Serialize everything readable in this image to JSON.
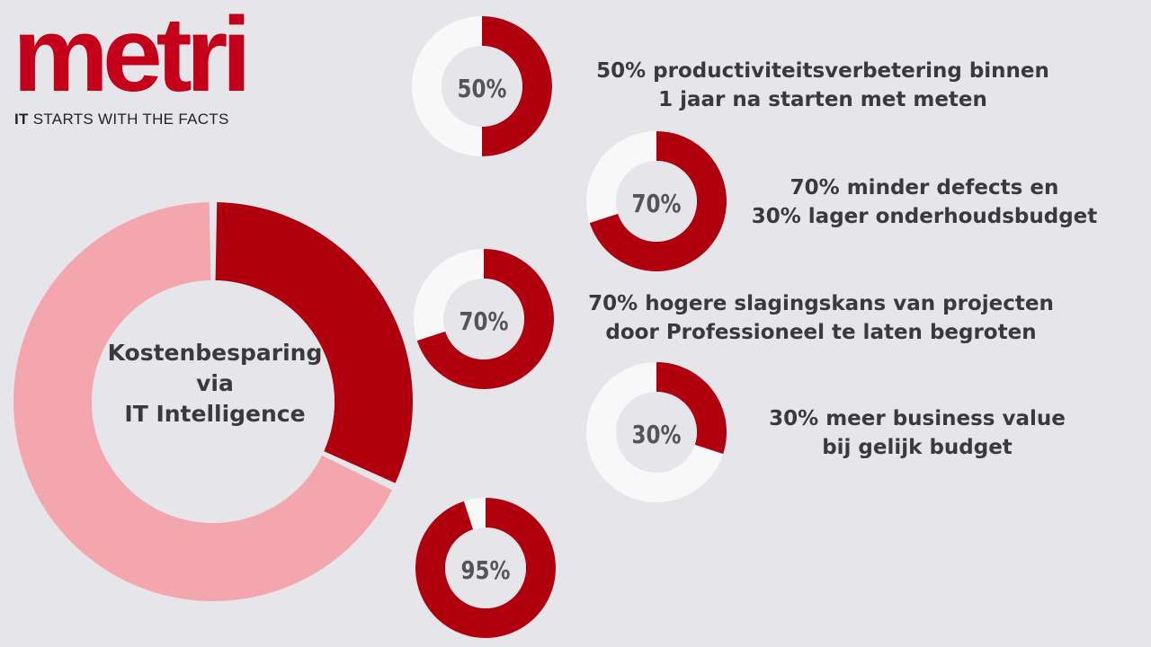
{
  "brand": {
    "logo_text": "metri",
    "tagline_bold": "IT",
    "tagline_rest": " STARTS WITH THE FACTS",
    "color": "#c4001a"
  },
  "colors": {
    "background": "#e6e6ea",
    "dark_red": "#b0000f",
    "pink": "#f4a6ae",
    "ring_remainder": "#f8f8f8",
    "percent_text": "#555555",
    "stat_text": "#3a3a3a"
  },
  "chart_data": [
    {
      "type": "pie",
      "id": "main",
      "center_label": [
        "Kostenbesparing",
        "via",
        "IT Intelligence"
      ],
      "values": [
        32,
        68
      ]
    },
    {
      "type": "pie",
      "id": "stat1",
      "label": "50%",
      "value": 50,
      "text": [
        "50% productiviteitsverbetering binnen",
        "1 jaar na starten met meten"
      ]
    },
    {
      "type": "pie",
      "id": "stat2",
      "label": "70%",
      "value": 70,
      "text": [
        "70% minder defects en",
        "30% lager onderhoudsbudget"
      ]
    },
    {
      "type": "pie",
      "id": "stat3",
      "label": "70%",
      "value": 70,
      "text": [
        "70% hogere slagingskans van projecten",
        "door Professioneel te laten begroten"
      ]
    },
    {
      "type": "pie",
      "id": "stat4",
      "label": "30%",
      "value": 30,
      "text": [
        "30% meer business value",
        "bij gelijk budget"
      ]
    },
    {
      "type": "pie",
      "id": "stat5",
      "label": "95%",
      "value": 95,
      "text": []
    }
  ]
}
